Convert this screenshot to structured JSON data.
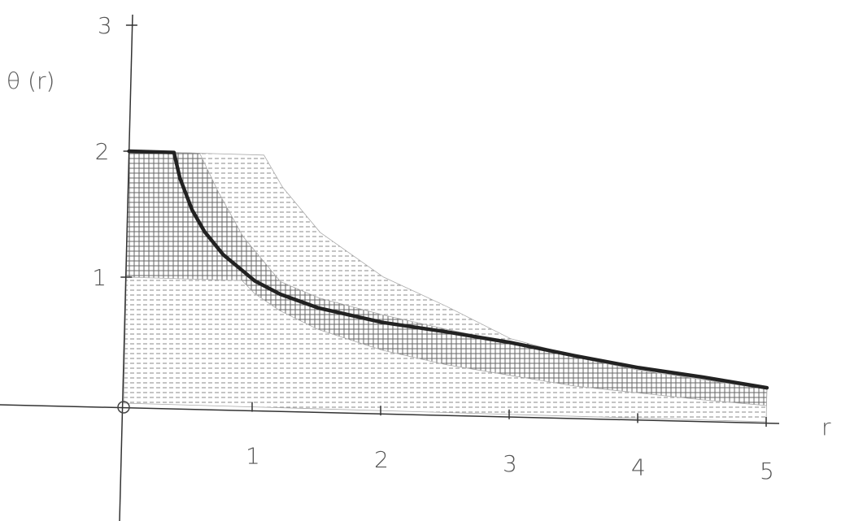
{
  "chart_data": {
    "type": "line",
    "xlabel": "r",
    "ylabel": "θ (r)",
    "xlim": [
      0,
      5
    ],
    "ylim": [
      0,
      3
    ],
    "x_ticks": [
      "1",
      "2",
      "3",
      "4",
      "5"
    ],
    "y_ticks": [
      "1",
      "2",
      "3"
    ],
    "origin_label": "o",
    "grid": false,
    "series": [
      {
        "role": "main_curve",
        "color": "#222222",
        "points": [
          [
            0,
            2
          ],
          [
            0.35,
            2
          ],
          [
            0.4,
            1.8
          ],
          [
            0.5,
            1.55
          ],
          [
            0.6,
            1.38
          ],
          [
            0.75,
            1.2
          ],
          [
            0.9,
            1.08
          ],
          [
            1.0,
            1.0
          ],
          [
            1.2,
            0.9
          ],
          [
            1.5,
            0.8
          ],
          [
            2.0,
            0.7
          ],
          [
            2.5,
            0.64
          ],
          [
            3.0,
            0.57
          ],
          [
            3.5,
            0.48
          ],
          [
            4.0,
            0.4
          ],
          [
            4.5,
            0.34
          ],
          [
            5.0,
            0.27
          ]
        ]
      }
    ],
    "shaded_regions": [
      {
        "role": "horizontal_hatch_band",
        "pattern": "horizontal",
        "upper": [
          [
            0,
            2
          ],
          [
            1.05,
            2
          ],
          [
            1.2,
            1.75
          ],
          [
            1.5,
            1.4
          ],
          [
            2.0,
            1.06
          ],
          [
            2.5,
            0.84
          ],
          [
            3.0,
            0.6
          ],
          [
            3.5,
            0.48
          ],
          [
            4.0,
            0.39
          ],
          [
            4.5,
            0.32
          ],
          [
            5.0,
            0.26
          ]
        ],
        "lower": [
          [
            0,
            0
          ],
          [
            5.0,
            0
          ]
        ]
      },
      {
        "role": "crosshatch_band",
        "pattern": "crosshatch",
        "upper": [
          [
            0,
            2
          ],
          [
            0.55,
            2
          ],
          [
            0.7,
            1.7
          ],
          [
            0.9,
            1.35
          ],
          [
            1.2,
            1.0
          ],
          [
            1.5,
            0.88
          ],
          [
            2.0,
            0.76
          ],
          [
            2.5,
            0.66
          ],
          [
            3.0,
            0.57
          ],
          [
            3.5,
            0.47
          ],
          [
            4.0,
            0.38
          ],
          [
            4.5,
            0.32
          ],
          [
            5.0,
            0.26
          ]
        ],
        "lower": [
          [
            0,
            1.0
          ],
          [
            0.9,
            1.0
          ],
          [
            1.0,
            0.9
          ],
          [
            1.2,
            0.77
          ],
          [
            1.5,
            0.63
          ],
          [
            2.0,
            0.48
          ],
          [
            2.5,
            0.38
          ],
          [
            3.0,
            0.31
          ],
          [
            3.5,
            0.24
          ],
          [
            4.0,
            0.2
          ],
          [
            4.5,
            0.16
          ],
          [
            5.0,
            0.13
          ]
        ]
      }
    ]
  }
}
